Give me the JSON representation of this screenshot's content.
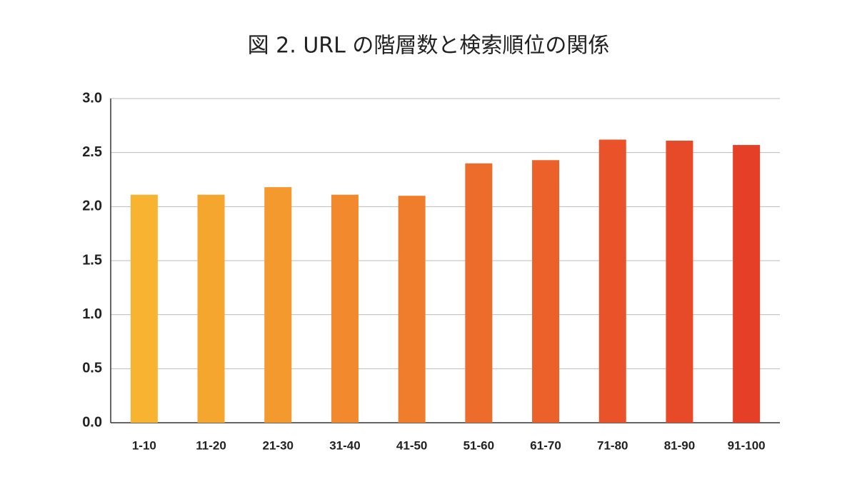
{
  "chart_data": {
    "type": "bar",
    "title": "図 2. URL の階層数と検索順位の関係",
    "categories": [
      "1-10",
      "11-20",
      "21-30",
      "31-40",
      "41-50",
      "51-60",
      "61-70",
      "71-80",
      "81-90",
      "91-100"
    ],
    "values": [
      2.11,
      2.11,
      2.18,
      2.11,
      2.1,
      2.4,
      2.43,
      2.62,
      2.61,
      2.57
    ],
    "colors": [
      "#f8b330",
      "#f5a62f",
      "#f4992e",
      "#f2892d",
      "#f07d2c",
      "#ee6c2b",
      "#ec612a",
      "#ea5329",
      "#e74a28",
      "#e53f28"
    ],
    "ylim": [
      0,
      3
    ],
    "yticks": [
      {
        "value": 0,
        "label": "0.0"
      },
      0.5,
      {
        "value": 1,
        "label": "1.0"
      },
      1.5,
      {
        "value": 2,
        "label": "2.0"
      },
      2.5,
      {
        "value": 3,
        "label": "3.0"
      }
    ],
    "grid": true
  }
}
